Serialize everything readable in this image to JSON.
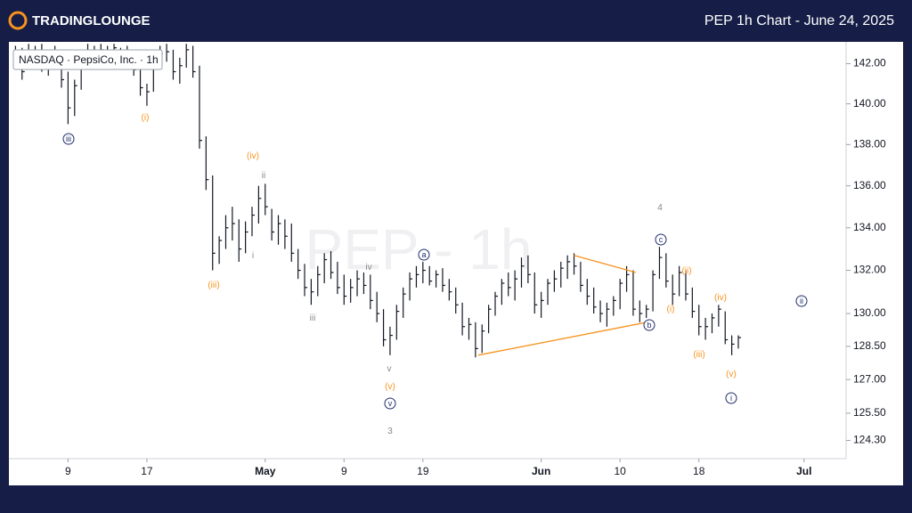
{
  "header": {
    "logo": "TRADINGLOUNGE",
    "title": "PEP 1h Chart - June 24, 2025"
  },
  "chart_data": {
    "type": "ohlc",
    "legend": "NASDAQ · PepsiCo, Inc. · 1h",
    "watermark": "PEP - 1h",
    "color": "#131722",
    "log_scale": true,
    "ylim": [
      123.5,
      143.1
    ],
    "yticks": [
      {
        "value": 142,
        "label": "142.00"
      },
      {
        "value": 140,
        "label": "140.00"
      },
      {
        "value": 138,
        "label": "138.00"
      },
      {
        "value": 136,
        "label": "136.00"
      },
      {
        "value": 134,
        "label": "134.00"
      },
      {
        "value": 132,
        "label": "132.00"
      },
      {
        "value": 130,
        "label": "130.00"
      },
      {
        "value": 128.5,
        "label": "128.50"
      },
      {
        "value": 127,
        "label": "127.00"
      },
      {
        "value": 125.5,
        "label": "125.50"
      },
      {
        "value": 124.3,
        "label": "124.30"
      }
    ],
    "xlim": [
      -4.5,
      59.2
    ],
    "xticks": [
      {
        "value": 0,
        "label": "9"
      },
      {
        "value": 6,
        "label": "17"
      },
      {
        "value": 15,
        "label": "May"
      },
      {
        "value": 21,
        "label": "9"
      },
      {
        "value": 27,
        "label": "19"
      },
      {
        "value": 36,
        "label": "Jun"
      },
      {
        "value": 42,
        "label": "10"
      },
      {
        "value": 48,
        "label": "18"
      },
      {
        "value": 56,
        "label": "Jul"
      }
    ],
    "x": [
      -4,
      -3.5,
      -3,
      -2.5,
      -2,
      -1.5,
      -1,
      -0.5,
      0,
      0.5,
      1,
      1.5,
      2,
      2.5,
      3,
      3.5,
      4,
      4.5,
      5,
      5.5,
      6,
      6.5,
      7,
      7.5,
      8,
      8.5,
      9,
      9.5,
      10,
      10.5,
      11,
      11.5,
      12,
      12.5,
      13,
      13.5,
      14,
      14.5,
      15,
      15.5,
      16,
      16.5,
      17,
      17.5,
      18,
      18.5,
      19,
      19.5,
      20,
      20.5,
      21,
      21.5,
      22,
      22.5,
      23,
      23.5,
      24,
      24.5,
      25,
      25.5,
      26,
      26.5,
      27,
      27.5,
      28,
      28.5,
      29,
      29.5,
      30,
      30.5,
      31,
      31.5,
      32,
      32.5,
      33,
      33.5,
      34,
      34.5,
      35,
      35.5,
      36,
      36.5,
      37,
      37.5,
      38,
      38.5,
      39,
      39.5,
      40,
      40.5,
      41,
      41.5,
      42,
      42.5,
      43,
      43.5,
      44,
      44.5,
      45,
      45.5,
      46,
      46.5,
      47,
      47.5,
      48,
      48.5,
      49,
      49.5,
      50,
      50.5,
      51
    ],
    "high": [
      142.9,
      142.8,
      143.0,
      142.9,
      143.0,
      142.7,
      142.9,
      142.6,
      141.6,
      141.2,
      142.5,
      143.0,
      142.9,
      143.0,
      142.9,
      143.0,
      142.8,
      142.9,
      142.6,
      141.9,
      141.0,
      142.2,
      142.9,
      143.0,
      142.7,
      142.3,
      143.0,
      142.9,
      141.9,
      138.4,
      136.5,
      133.6,
      134.6,
      135.0,
      134.4,
      134.3,
      135.0,
      136.0,
      136.1,
      134.9,
      134.6,
      134.4,
      134.2,
      133.0,
      132.3,
      131.6,
      132.2,
      132.8,
      132.9,
      132.4,
      131.8,
      131.6,
      132.0,
      131.9,
      131.8,
      131.0,
      130.2,
      129.4,
      130.4,
      131.2,
      131.9,
      132.2,
      132.4,
      132.2,
      132.0,
      132.1,
      131.6,
      131.2,
      130.5,
      129.8,
      129.6,
      129.5,
      130.4,
      131.0,
      131.6,
      131.9,
      132.0,
      132.6,
      132.7,
      131.9,
      131.0,
      131.6,
      132.0,
      132.4,
      132.7,
      132.8,
      132.4,
      131.6,
      131.2,
      130.6,
      130.5,
      130.8,
      131.6,
      132.2,
      132.0,
      130.6,
      130.4,
      132.0,
      133.1,
      132.8,
      131.8,
      132.2,
      132.0,
      131.2,
      130.4,
      129.8,
      130.0,
      130.4,
      130.1,
      129.0,
      129.0
    ],
    "low": [
      141.8,
      141.2,
      141.9,
      142.0,
      141.6,
      141.4,
      141.9,
      140.8,
      139.0,
      139.4,
      140.7,
      141.9,
      142.0,
      142.1,
      142.2,
      142.0,
      142.1,
      142.0,
      141.4,
      140.4,
      139.9,
      140.6,
      141.7,
      142.1,
      141.2,
      141.0,
      141.8,
      141.3,
      137.8,
      135.8,
      132.0,
      132.3,
      133.0,
      133.4,
      132.4,
      132.8,
      133.6,
      134.2,
      134.6,
      133.4,
      133.2,
      133.0,
      132.4,
      131.6,
      130.8,
      130.4,
      130.8,
      131.4,
      131.6,
      130.9,
      130.4,
      130.5,
      130.8,
      130.9,
      130.2,
      129.6,
      128.5,
      128.1,
      128.8,
      129.8,
      130.6,
      131.2,
      131.4,
      131.3,
      131.2,
      131.0,
      130.6,
      130.0,
      129.0,
      128.8,
      128.0,
      128.2,
      129.1,
      129.9,
      130.4,
      130.8,
      130.6,
      131.2,
      131.4,
      130.0,
      129.8,
      130.4,
      131.0,
      131.2,
      131.6,
      131.8,
      131.0,
      130.4,
      130.0,
      129.6,
      129.4,
      129.9,
      130.2,
      131.0,
      129.9,
      129.6,
      129.8,
      130.1,
      131.6,
      131.2,
      130.4,
      130.8,
      130.6,
      129.8,
      129.0,
      128.8,
      129.1,
      129.4,
      128.6,
      128.1,
      128.4
    ],
    "close": [
      142.3,
      141.6,
      142.6,
      142.4,
      142.0,
      142.1,
      142.5,
      141.2,
      139.8,
      140.9,
      142.1,
      142.6,
      142.5,
      142.7,
      142.6,
      142.8,
      142.4,
      142.3,
      141.7,
      140.8,
      140.6,
      141.9,
      142.5,
      142.6,
      141.6,
      141.9,
      142.7,
      141.6,
      138.2,
      136.3,
      132.8,
      133.4,
      134.0,
      134.2,
      133.0,
      133.8,
      134.6,
      135.4,
      135.0,
      133.8,
      134.2,
      133.6,
      132.8,
      132.0,
      131.2,
      131.0,
      131.8,
      132.5,
      131.9,
      131.2,
      130.8,
      131.2,
      131.6,
      131.3,
      130.6,
      130.0,
      128.8,
      129.0,
      130.1,
      130.9,
      131.6,
      131.8,
      132.0,
      131.5,
      131.8,
      131.3,
      131.0,
      130.4,
      129.4,
      129.5,
      128.4,
      129.2,
      130.2,
      130.8,
      131.4,
      131.2,
      131.6,
      132.2,
      131.8,
      130.4,
      130.6,
      131.4,
      131.6,
      132.1,
      132.4,
      132.2,
      131.3,
      130.8,
      130.3,
      130.0,
      130.2,
      130.6,
      131.4,
      131.8,
      130.2,
      130.0,
      130.2,
      131.8,
      132.6,
      131.5,
      130.9,
      131.9,
      130.9,
      130.1,
      129.4,
      129.4,
      129.8,
      130.2,
      128.8,
      128.6,
      128.9
    ],
    "trendlines": [
      {
        "color": "#f7931e",
        "x": [
          31.2,
          44.05
        ],
        "y": [
          128.1,
          129.6
        ]
      },
      {
        "color": "#f7931e",
        "x": [
          38.5,
          43.2
        ],
        "y": [
          132.7,
          131.9
        ]
      }
    ],
    "annotations": [
      {
        "text": "iii",
        "color": "#1f2d6b",
        "circle": true
      },
      {
        "text": "(i)",
        "color": "#f7931e"
      },
      {
        "text": "(iv)",
        "color": "#f7931e"
      },
      {
        "text": "ii",
        "color": "#888888"
      },
      {
        "text": "i",
        "color": "#888888"
      },
      {
        "text": "(iii)",
        "color": "#f7931e"
      },
      {
        "text": "iii",
        "color": "#888888"
      },
      {
        "text": "iv",
        "color": "#888888"
      },
      {
        "text": "v",
        "color": "#888888"
      },
      {
        "text": "(v)",
        "color": "#f7931e"
      },
      {
        "text": "v",
        "color": "#1f2d6b",
        "circle": true
      },
      {
        "text": "3",
        "color": "#888888"
      },
      {
        "text": "a",
        "color": "#1f2d6b",
        "circle": true
      },
      {
        "text": "4",
        "color": "#888888"
      },
      {
        "text": "c",
        "color": "#1f2d6b",
        "circle": true
      },
      {
        "text": "b",
        "color": "#1f2d6b",
        "circle": true
      },
      {
        "text": "(ii)",
        "color": "#f7931e"
      },
      {
        "text": "(i)",
        "color": "#f7931e"
      },
      {
        "text": "(iii)",
        "color": "#f7931e"
      },
      {
        "text": "(iv)",
        "color": "#f7931e"
      },
      {
        "text": "(v)",
        "color": "#f7931e"
      },
      {
        "text": "i",
        "color": "#1f2d6b",
        "circle": true
      },
      {
        "text": "ii",
        "color": "#1f2d6b",
        "circle": true
      }
    ]
  }
}
